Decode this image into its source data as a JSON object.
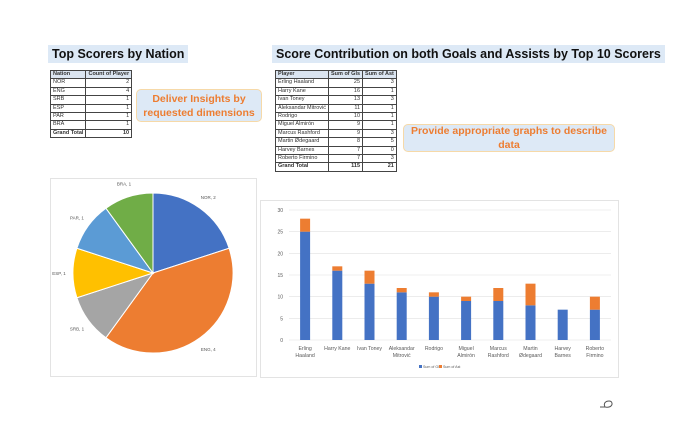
{
  "left": {
    "title": "Top Scorers by Nation",
    "table": {
      "headers": [
        "Nation",
        "Count of Player"
      ],
      "rows": [
        [
          "NOR",
          "2"
        ],
        [
          "ENG",
          "4"
        ],
        [
          "SRB",
          "1"
        ],
        [
          "ESP",
          "1"
        ],
        [
          "PAR",
          "1"
        ],
        [
          "BRA",
          "1"
        ]
      ],
      "total": [
        "Grand Total",
        "10"
      ]
    },
    "callout": "Deliver Insights by requested dimensions"
  },
  "right": {
    "title": "Score Contribution on both Goals and Assists by Top 10 Scorers",
    "table": {
      "headers": [
        "Player",
        "Sum of Gls",
        "Sum of Ast"
      ],
      "rows": [
        [
          "Erling Haaland",
          "25",
          "3"
        ],
        [
          "Harry Kane",
          "16",
          "1"
        ],
        [
          "Ivan Toney",
          "13",
          "3"
        ],
        [
          "Aleksandar Mitrović",
          "11",
          "1"
        ],
        [
          "Rodrigo",
          "10",
          "1"
        ],
        [
          "Miguel Almirón",
          "9",
          "1"
        ],
        [
          "Marcus Rashford",
          "9",
          "3"
        ],
        [
          "Martin Ødegaard",
          "8",
          "5"
        ],
        [
          "Harvey Barnes",
          "7",
          "0"
        ],
        [
          "Roberto Firmino",
          "7",
          "3"
        ]
      ],
      "total": [
        "Grand Total",
        "115",
        "21"
      ]
    },
    "callout": "Provide appropriate graphs to describe data"
  },
  "chart_data": [
    {
      "type": "pie",
      "categories": [
        "NOR",
        "ENG",
        "SRB",
        "ESP",
        "PAR",
        "BRA"
      ],
      "values": [
        2,
        4,
        1,
        1,
        1,
        1
      ],
      "labels": [
        "NOR, 2",
        "ENG, 4",
        "SRB, 1",
        "ESP, 1",
        "PAR, 1",
        "BRA, 1"
      ],
      "colors": [
        "#4472C4",
        "#ED7D31",
        "#A5A5A5",
        "#FFC000",
        "#5B9BD5",
        "#70AD47"
      ]
    },
    {
      "type": "bar",
      "stacked": true,
      "categories": [
        [
          "Erling",
          "Haaland"
        ],
        [
          "Harry Kane"
        ],
        [
          "Ivan Toney"
        ],
        [
          "Aleksandar",
          "Mitrović"
        ],
        [
          "Rodrigo"
        ],
        [
          "Miguel",
          "Almirón"
        ],
        [
          "Marcus",
          "Rashford"
        ],
        [
          "Martin",
          "Ødegaard"
        ],
        [
          "Harvey",
          "Barnes"
        ],
        [
          "Roberto",
          "Firmino"
        ]
      ],
      "series": [
        {
          "name": "Sum of Gls",
          "values": [
            25,
            16,
            13,
            11,
            10,
            9,
            9,
            8,
            7,
            7
          ],
          "color": "#4472C4"
        },
        {
          "name": "Sum of Ast",
          "values": [
            3,
            1,
            3,
            1,
            1,
            1,
            3,
            5,
            0,
            3
          ],
          "color": "#ED7D31"
        }
      ],
      "ylim": [
        0,
        30
      ],
      "yticks": [
        "0",
        "5",
        "10",
        "15",
        "20",
        "25",
        "30"
      ],
      "grid": true,
      "legend": "bottom"
    }
  ],
  "icons": {
    "corner": "lasso-icon"
  }
}
